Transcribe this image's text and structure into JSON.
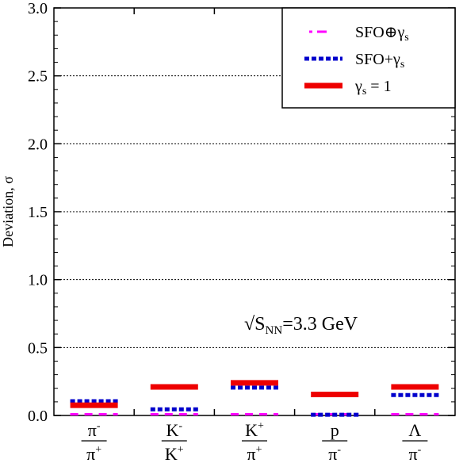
{
  "chart_data": {
    "type": "bar",
    "title": "",
    "xlabel": "",
    "ylabel": "Deviation, σ",
    "ylim": [
      0,
      3.0
    ],
    "yticks": [
      "0.0",
      "0.5",
      "1.0",
      "1.5",
      "2.0",
      "2.5",
      "3.0"
    ],
    "grid": "horizontal dotted at major ticks",
    "legend_position": "top-right",
    "categories": [
      {
        "num": "π",
        "num_sup": "-",
        "den": "π",
        "den_sup": "+"
      },
      {
        "num": "K",
        "num_sup": "-",
        "den": "K",
        "den_sup": "+"
      },
      {
        "num": "K",
        "num_sup": "+",
        "den": "π",
        "den_sup": "+"
      },
      {
        "num": "p",
        "num_sup": "",
        "den": "π",
        "den_sup": "-"
      },
      {
        "num": "Λ",
        "num_sup": "",
        "den": "π",
        "den_sup": "-"
      }
    ],
    "series": [
      {
        "name": "SFO⊕γ",
        "name_sub": "s",
        "style": "dash-dot",
        "color": "#ff00ff",
        "values": [
          0.0,
          0.0,
          0.0,
          0.0,
          0.0
        ]
      },
      {
        "name": "SFO+γ",
        "name_sub": "s",
        "style": "dotted",
        "color": "#0000cc",
        "values": [
          0.105,
          0.045,
          0.205,
          0.005,
          0.15
        ]
      },
      {
        "name": "γ",
        "name_sub": "s",
        "name_suffix": " = 1",
        "style": "solid",
        "color": "#ee0000",
        "values": [
          0.075,
          0.21,
          0.24,
          0.155,
          0.21
        ]
      }
    ],
    "annotation": {
      "text": "√S",
      "sub": "NN",
      "suffix": "=3.3 GeV"
    }
  }
}
